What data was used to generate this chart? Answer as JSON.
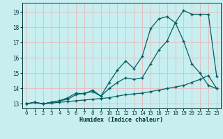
{
  "xlabel": "Humidex (Indice chaleur)",
  "bg_color": "#c8eef0",
  "grid_color": "#e8b8b8",
  "line_color": "#006060",
  "xlim": [
    -0.5,
    23.5
  ],
  "ylim": [
    12.7,
    19.6
  ],
  "yticks": [
    13,
    14,
    15,
    16,
    17,
    18,
    19
  ],
  "xticks": [
    0,
    1,
    2,
    3,
    4,
    5,
    6,
    7,
    8,
    9,
    10,
    11,
    12,
    13,
    14,
    15,
    16,
    17,
    18,
    19,
    20,
    21,
    22,
    23
  ],
  "series1_x": [
    0,
    1,
    2,
    3,
    4,
    5,
    6,
    7,
    8,
    9,
    10,
    11,
    12,
    13,
    14,
    15,
    16,
    17,
    18,
    19,
    20,
    21,
    22,
    23
  ],
  "series1_y": [
    13.0,
    13.1,
    13.0,
    13.05,
    13.1,
    13.15,
    13.2,
    13.25,
    13.3,
    13.35,
    13.4,
    13.5,
    13.6,
    13.65,
    13.7,
    13.8,
    13.9,
    14.0,
    14.1,
    14.2,
    14.4,
    14.6,
    14.85,
    14.0
  ],
  "series2_x": [
    0,
    1,
    2,
    3,
    4,
    5,
    6,
    7,
    8,
    9,
    10,
    11,
    12,
    13,
    14,
    15,
    16,
    17,
    18,
    19,
    20,
    21,
    22,
    23
  ],
  "series2_y": [
    13.0,
    13.1,
    13.0,
    13.1,
    13.2,
    13.3,
    13.6,
    13.7,
    13.8,
    13.5,
    14.0,
    14.4,
    14.7,
    14.6,
    14.7,
    15.6,
    16.5,
    17.1,
    18.3,
    17.1,
    15.6,
    15.0,
    14.2,
    14.0
  ],
  "series3_x": [
    0,
    1,
    2,
    3,
    4,
    5,
    6,
    7,
    8,
    9,
    10,
    11,
    12,
    13,
    14,
    15,
    16,
    17,
    18,
    19,
    20,
    21,
    22,
    23
  ],
  "series3_y": [
    13.0,
    13.1,
    13.0,
    13.1,
    13.2,
    13.4,
    13.7,
    13.65,
    13.9,
    13.5,
    14.4,
    15.2,
    15.8,
    15.3,
    16.1,
    17.9,
    18.55,
    18.7,
    18.3,
    19.1,
    18.85,
    18.85,
    18.85,
    14.8
  ],
  "font_color": "#003333"
}
